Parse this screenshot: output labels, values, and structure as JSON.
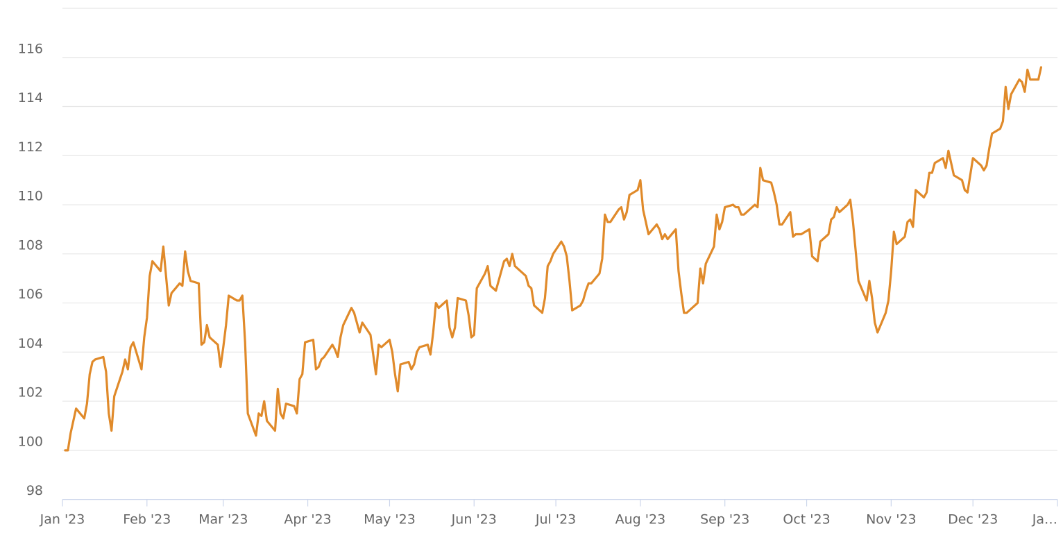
{
  "chart_data": {
    "type": "line",
    "color": "#e08a2a",
    "grid": true,
    "xlim": [
      0,
      365
    ],
    "xticks": [
      {
        "value": 0,
        "label": "Jan '23"
      },
      {
        "value": 31,
        "label": "Feb '23"
      },
      {
        "value": 59,
        "label": "Mar '23"
      },
      {
        "value": 90,
        "label": "Apr '23"
      },
      {
        "value": 120,
        "label": "May '23"
      },
      {
        "value": 151,
        "label": "Jun '23"
      },
      {
        "value": 181,
        "label": "Jul '23"
      },
      {
        "value": 212,
        "label": "Aug '23"
      },
      {
        "value": 243,
        "label": "Sep '23"
      },
      {
        "value": 273,
        "label": "Oct '23"
      },
      {
        "value": 304,
        "label": "Nov '23"
      },
      {
        "value": 334,
        "label": "Dec '23"
      },
      {
        "value": 365,
        "label": "Ja…"
      }
    ],
    "ylim": [
      98,
      118
    ],
    "yticks": [
      98,
      100,
      102,
      104,
      106,
      108,
      110,
      112,
      114,
      116
    ],
    "x": [
      1,
      2,
      3,
      4,
      5,
      8,
      9,
      10,
      11,
      12,
      15,
      16,
      17,
      18,
      19,
      22,
      23,
      24,
      25,
      26,
      29,
      30,
      31,
      32,
      33,
      36,
      37,
      38,
      39,
      40,
      43,
      44,
      45,
      46,
      47,
      50,
      51,
      52,
      53,
      54,
      57,
      58,
      59,
      60,
      61,
      64,
      65,
      66,
      67,
      68,
      71,
      72,
      73,
      74,
      75,
      78,
      79,
      80,
      81,
      82,
      85,
      86,
      87,
      88,
      89,
      92,
      93,
      94,
      95,
      96,
      99,
      100,
      101,
      102,
      103,
      106,
      107,
      108,
      109,
      110,
      113,
      114,
      115,
      116,
      117,
      120,
      121,
      122,
      123,
      124,
      127,
      128,
      129,
      130,
      131,
      134,
      135,
      136,
      137,
      138,
      141,
      142,
      143,
      144,
      145,
      148,
      149,
      150,
      151,
      152,
      155,
      156,
      157,
      158,
      159,
      162,
      163,
      164,
      165,
      166,
      169,
      170,
      171,
      172,
      173,
      176,
      177,
      178,
      179,
      180,
      183,
      184,
      185,
      186,
      187,
      190,
      191,
      192,
      193,
      194,
      197,
      198,
      199,
      200,
      201,
      204,
      205,
      206,
      207,
      208,
      211,
      212,
      213,
      214,
      215,
      218,
      219,
      220,
      221,
      222,
      225,
      226,
      227,
      228,
      229,
      232,
      233,
      234,
      235,
      236,
      239,
      240,
      241,
      242,
      243,
      246,
      247,
      248,
      249,
      250,
      253,
      254,
      255,
      256,
      257,
      260,
      261,
      262,
      263,
      264,
      267,
      268,
      269,
      270,
      271,
      274,
      275,
      276,
      277,
      278,
      281,
      282,
      283,
      284,
      285,
      288,
      289,
      290,
      291,
      292,
      295,
      296,
      297,
      298,
      299,
      302,
      303,
      304,
      305,
      306,
      309,
      310,
      311,
      312,
      313,
      316,
      317,
      318,
      319,
      320,
      323,
      324,
      325,
      326,
      327,
      330,
      331,
      332,
      333,
      334,
      337,
      338,
      339,
      340,
      341,
      344,
      345,
      346,
      347,
      348,
      351,
      352,
      353,
      354,
      355,
      358,
      359
    ],
    "values": [
      100.0,
      100.0,
      100.7,
      101.2,
      101.7,
      101.3,
      101.9,
      103.1,
      103.6,
      103.7,
      103.8,
      103.2,
      101.5,
      100.8,
      102.2,
      103.2,
      103.7,
      103.3,
      104.2,
      104.4,
      103.3,
      104.6,
      105.4,
      107.1,
      107.7,
      107.3,
      108.3,
      107.1,
      105.9,
      106.4,
      106.8,
      106.7,
      108.1,
      107.3,
      106.9,
      106.8,
      104.3,
      104.4,
      105.1,
      104.6,
      104.3,
      103.4,
      104.2,
      105.1,
      106.3,
      106.1,
      106.1,
      106.3,
      104.4,
      101.5,
      100.6,
      101.5,
      101.4,
      102.0,
      101.2,
      100.8,
      102.5,
      101.5,
      101.3,
      101.9,
      101.8,
      101.5,
      102.9,
      103.1,
      104.4,
      104.5,
      103.3,
      103.4,
      103.7,
      103.8,
      104.3,
      104.1,
      103.8,
      104.6,
      105.1,
      105.8,
      105.6,
      105.2,
      104.8,
      105.2,
      104.7,
      103.9,
      103.1,
      104.3,
      104.2,
      104.5,
      104.0,
      103.1,
      102.4,
      103.5,
      103.6,
      103.3,
      103.5,
      104.0,
      104.2,
      104.3,
      103.9,
      104.8,
      106.0,
      105.8,
      106.1,
      105.0,
      104.6,
      105.0,
      106.2,
      106.1,
      105.5,
      104.6,
      104.7,
      106.6,
      107.2,
      107.5,
      106.7,
      106.6,
      106.5,
      107.7,
      107.8,
      107.5,
      108.0,
      107.5,
      107.2,
      107.1,
      106.7,
      106.6,
      105.9,
      105.6,
      106.2,
      107.5,
      107.7,
      108.0,
      108.5,
      108.3,
      107.9,
      106.9,
      105.7,
      105.9,
      106.1,
      106.5,
      106.8,
      106.8,
      107.2,
      107.8,
      109.6,
      109.3,
      109.3,
      109.8,
      109.9,
      109.4,
      109.7,
      110.4,
      110.6,
      111.0,
      109.8,
      109.3,
      108.8,
      109.2,
      109.0,
      108.6,
      108.8,
      108.6,
      109.0,
      107.3,
      106.4,
      105.6,
      105.6,
      105.9,
      106.0,
      107.4,
      106.8,
      107.6,
      108.3,
      109.6,
      109.0,
      109.3,
      109.9,
      110.0,
      109.9,
      109.9,
      109.6,
      109.6,
      109.9,
      110.0,
      109.9,
      111.5,
      111.0,
      110.9,
      110.5,
      110.0,
      109.2,
      109.2,
      109.7,
      108.7,
      108.8,
      108.8,
      108.8,
      109.0,
      107.9,
      107.8,
      107.7,
      108.5,
      108.8,
      109.4,
      109.5,
      109.9,
      109.7,
      110.0,
      110.2,
      109.3,
      108.1,
      106.9,
      106.1,
      106.9,
      106.2,
      105.2,
      104.8,
      105.6,
      106.1,
      107.3,
      108.9,
      108.4,
      108.7,
      109.3,
      109.4,
      109.1,
      110.6,
      110.3,
      110.5,
      111.3,
      111.3,
      111.7,
      111.9,
      111.5,
      112.2,
      111.7,
      111.2,
      111.0,
      110.6,
      110.5,
      111.2,
      111.9,
      111.6,
      111.4,
      111.6,
      112.3,
      112.9,
      113.1,
      113.4,
      114.8,
      113.9,
      114.5,
      115.1,
      115.0,
      114.6,
      115.5,
      115.1,
      115.1,
      115.6
    ]
  }
}
